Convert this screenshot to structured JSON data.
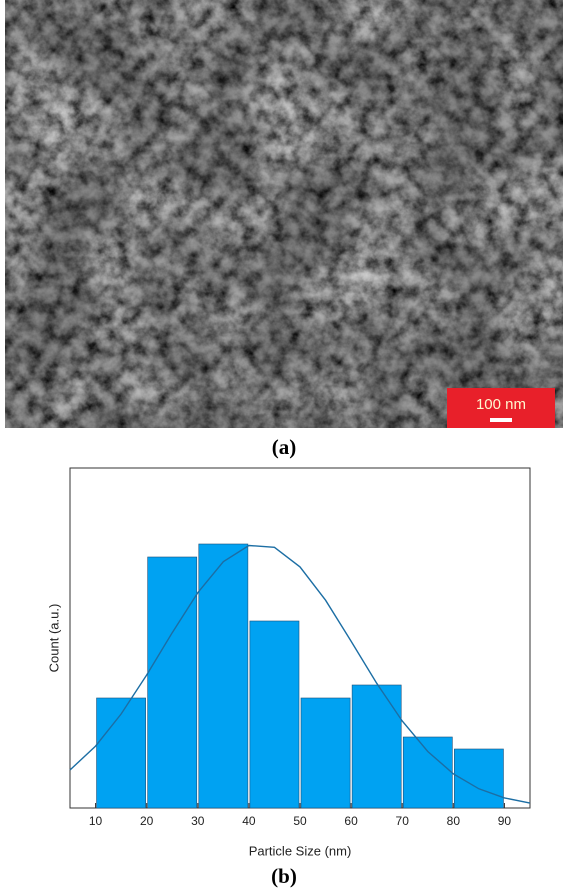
{
  "image": {
    "scale_bar_label": "100 nm",
    "caption": "(a)"
  },
  "chart_data": {
    "type": "histogram",
    "bins": [
      10,
      20,
      30,
      40,
      50,
      60,
      70,
      80,
      90
    ],
    "values": [
      11,
      25.1,
      26.4,
      18.7,
      11,
      12.3,
      7.1,
      5.9
    ],
    "color": "#00a2f2",
    "xlim": [
      5,
      95
    ],
    "xticks": [
      10,
      20,
      30,
      40,
      50,
      60,
      70,
      80,
      90
    ],
    "ylim": [
      0,
      34
    ],
    "xlabel": "Particle Size (nm)",
    "ylabel": "Count (a.u.)",
    "fit": {
      "x": [
        5,
        10,
        15,
        20,
        25,
        30,
        35,
        40,
        45,
        50,
        55,
        60,
        65,
        70,
        75,
        80,
        85,
        90,
        95
      ],
      "values": [
        3.8,
        6.19,
        9.4,
        13.3,
        17.53,
        21.53,
        24.63,
        26.25,
        26.07,
        24.11,
        20.78,
        16.68,
        12.48,
        8.7,
        5.65,
        3.42,
        1.92,
        1.01,
        0.49
      ],
      "color": "#1c6ea4"
    },
    "caption": "(b)"
  }
}
